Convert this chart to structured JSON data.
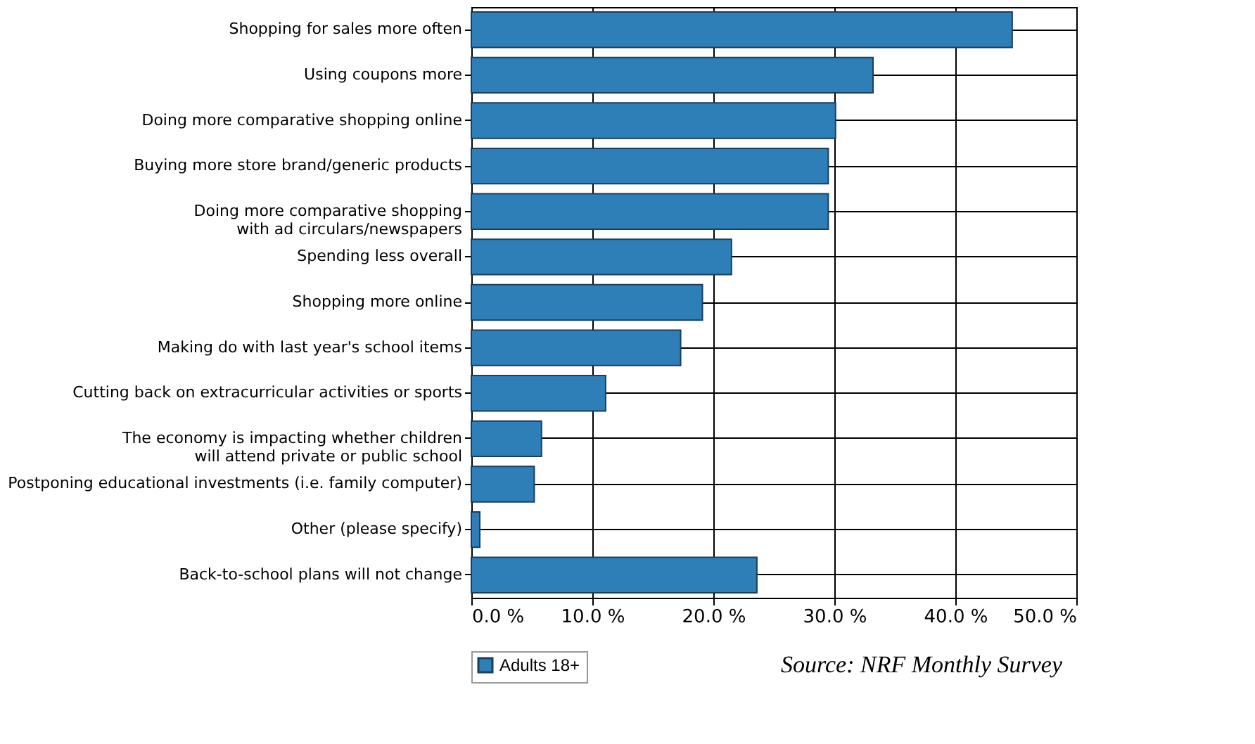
{
  "chart_data": {
    "type": "bar",
    "orientation": "horizontal",
    "categories": [
      "Shopping for sales more often",
      "Using coupons more",
      "Doing more comparative shopping online",
      "Buying more store brand/generic products",
      "Doing more comparative shopping\nwith ad circulars/newspapers",
      "Spending less overall",
      "Shopping more online",
      "Making do with last year's school items",
      "Cutting back on extracurricular activities or sports",
      "The economy is impacting whether children\nwill attend private or public school",
      "Postponing educational investments (i.e. family computer)",
      "Other (please specify)",
      "Back-to-school plans will not change"
    ],
    "series": [
      {
        "name": "Adults 18+",
        "color": "#2e7fb8",
        "values": [
          44.7,
          33.2,
          30.1,
          29.5,
          29.5,
          21.5,
          19.1,
          17.3,
          11.1,
          5.8,
          5.2,
          0.7,
          23.6
        ]
      }
    ],
    "xlim": [
      0,
      50
    ],
    "xticks": [
      {
        "value": 0,
        "label": "0.0 %"
      },
      {
        "value": 10,
        "label": "10.0 %"
      },
      {
        "value": 20,
        "label": "20.0 %"
      },
      {
        "value": 30,
        "label": "30.0 %"
      },
      {
        "value": 40,
        "label": "40.0 %"
      },
      {
        "value": 50,
        "label": "50.0 %"
      }
    ],
    "grid": true,
    "legend": "bottom",
    "annotations": [
      "Source: NRF Monthly Survey"
    ]
  }
}
